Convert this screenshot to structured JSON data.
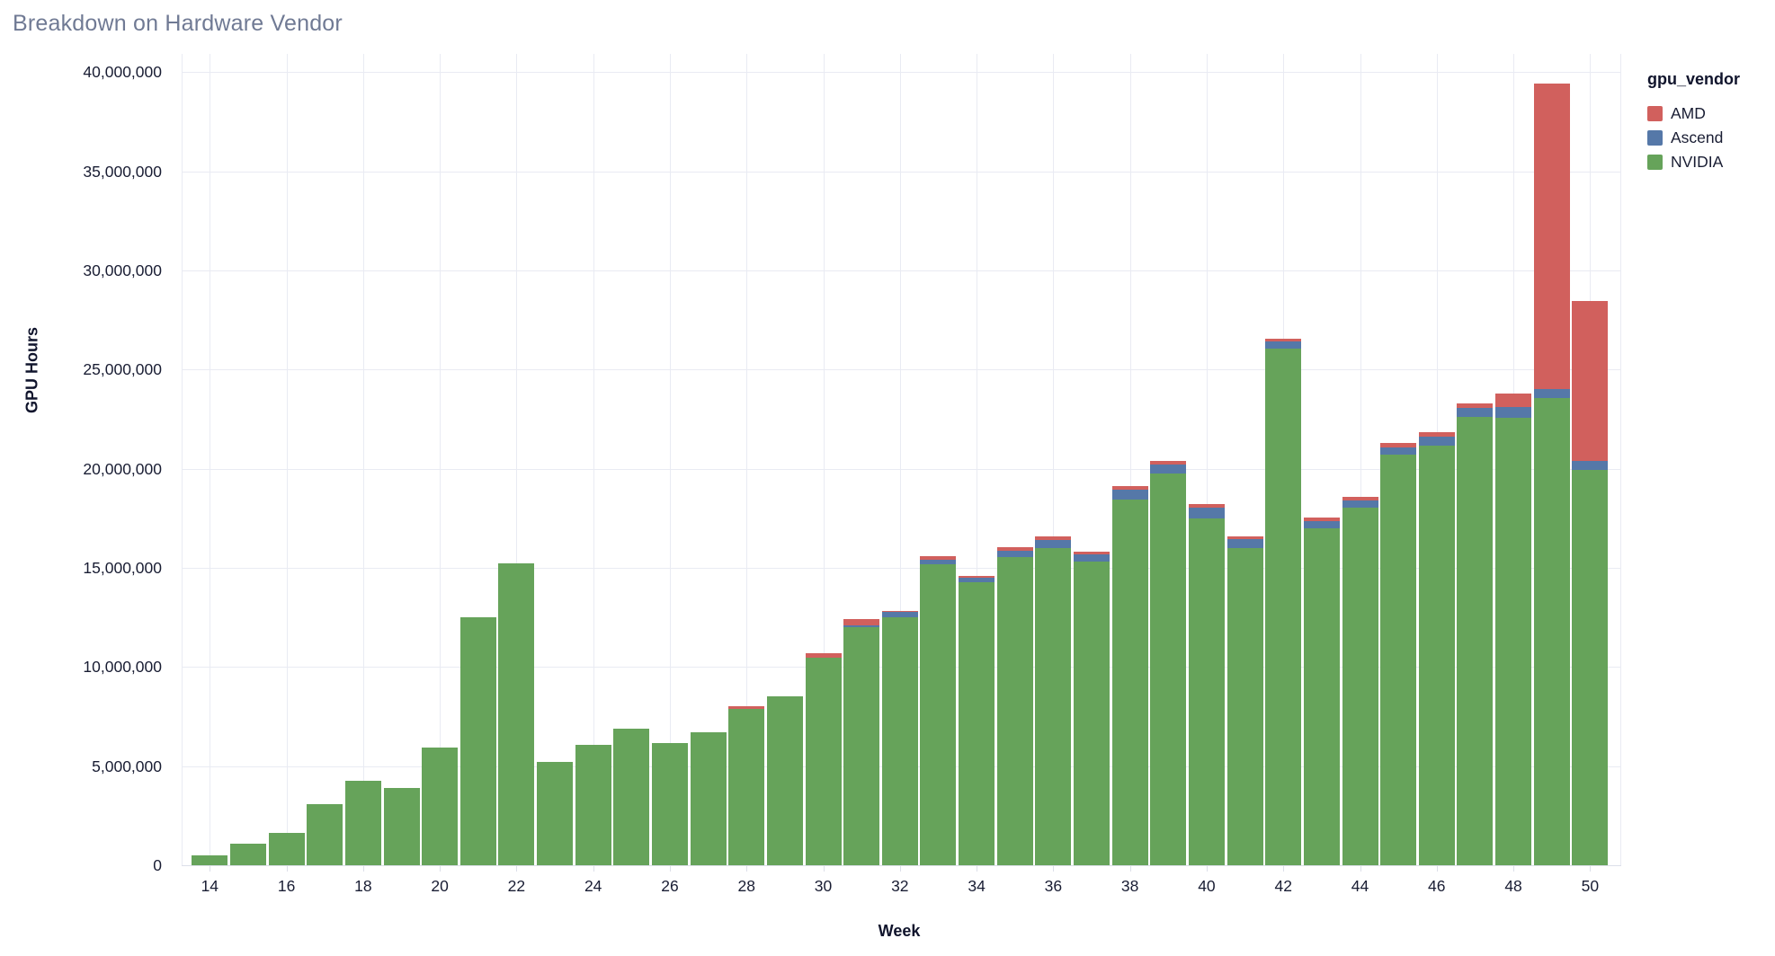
{
  "title": "Breakdown on Hardware Vendor",
  "legend": {
    "title": "gpu_vendor",
    "items": [
      {
        "label": "AMD",
        "color": "#d1605d"
      },
      {
        "label": "Ascend",
        "color": "#5578a8"
      },
      {
        "label": "NVIDIA",
        "color": "#66a35a"
      }
    ]
  },
  "colors": {
    "background": "#ffffff",
    "grid": "#e9ebf3",
    "axis_line": "#dcdfe9",
    "tick_text": "#191d33",
    "axis_title_text": "#10142c",
    "chart_title_text": "#707a94",
    "amd": "#d1605d",
    "ascend": "#5578a8",
    "nvidia": "#66a35a"
  },
  "chart_data": {
    "type": "bar",
    "stacked": true,
    "title": "Breakdown on Hardware Vendor",
    "xlabel": "Week",
    "ylabel": "GPU Hours",
    "legend_title": "gpu_vendor",
    "legend_position": "top-right",
    "grid": true,
    "x": [
      14,
      15,
      16,
      17,
      18,
      19,
      20,
      21,
      22,
      23,
      24,
      25,
      26,
      27,
      28,
      29,
      30,
      31,
      32,
      33,
      34,
      35,
      36,
      37,
      38,
      39,
      40,
      41,
      42,
      43,
      44,
      45,
      46,
      47,
      48,
      49,
      50
    ],
    "x_ticks": [
      14,
      16,
      18,
      20,
      22,
      24,
      26,
      28,
      30,
      32,
      34,
      36,
      38,
      40,
      42,
      44,
      46,
      48,
      50
    ],
    "ylim": [
      0,
      40000000
    ],
    "y_ticks": [
      0,
      5000000,
      10000000,
      15000000,
      20000000,
      25000000,
      30000000,
      35000000,
      40000000
    ],
    "stack_order_bottom_to_top": [
      "NVIDIA",
      "Ascend",
      "AMD"
    ],
    "series": [
      {
        "name": "NVIDIA",
        "color": "#66a35a",
        "values": [
          510000,
          1070000,
          1640000,
          3080000,
          4250000,
          3910000,
          5920000,
          12490000,
          15210000,
          5200000,
          6060000,
          6890000,
          6180000,
          6700000,
          7870000,
          8520000,
          10480000,
          11990000,
          12500000,
          15160000,
          14260000,
          15520000,
          16000000,
          15330000,
          18450000,
          19760000,
          17470000,
          16000000,
          26050000,
          17000000,
          18020000,
          20700000,
          21150000,
          22600000,
          22550000,
          23550000,
          19950000
        ]
      },
      {
        "name": "Ascend",
        "color": "#5578a8",
        "values": [
          0,
          0,
          0,
          0,
          0,
          0,
          0,
          0,
          0,
          0,
          0,
          0,
          0,
          0,
          0,
          0,
          0,
          120000,
          280000,
          230000,
          250000,
          350000,
          420000,
          350000,
          480000,
          450000,
          560000,
          450000,
          360000,
          370000,
          380000,
          370000,
          480000,
          480000,
          580000,
          480000,
          430000
        ]
      },
      {
        "name": "AMD",
        "color": "#d1605d",
        "values": [
          0,
          0,
          0,
          0,
          0,
          0,
          0,
          0,
          0,
          0,
          0,
          0,
          0,
          0,
          150000,
          0,
          200000,
          300000,
          40000,
          190000,
          90000,
          170000,
          170000,
          140000,
          190000,
          180000,
          180000,
          120000,
          160000,
          150000,
          180000,
          210000,
          190000,
          190000,
          650000,
          15380000,
          8070000
        ]
      }
    ]
  }
}
